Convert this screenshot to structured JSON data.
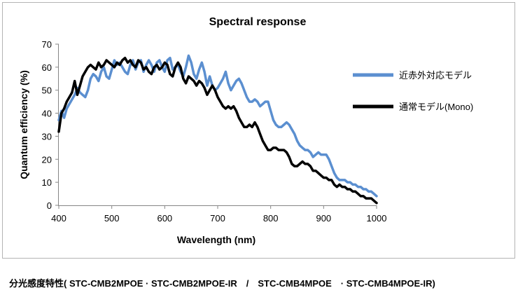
{
  "chart_data": {
    "type": "line",
    "title": "Spectral response",
    "xlabel": "Wavelength (nm)",
    "ylabel": "Quantum efficiency (%)",
    "xlim": [
      400,
      1000
    ],
    "ylim": [
      0,
      70
    ],
    "xticks": [
      400,
      500,
      600,
      700,
      800,
      900,
      1000
    ],
    "yticks": [
      0,
      10,
      20,
      30,
      40,
      50,
      60,
      70
    ],
    "grid": false,
    "legend_position": "right",
    "series": [
      {
        "name": "近赤外対応モデル",
        "color": "#5b8fd0",
        "x": [
          400,
          405,
          410,
          415,
          420,
          425,
          430,
          435,
          440,
          445,
          450,
          455,
          460,
          465,
          470,
          475,
          480,
          485,
          490,
          495,
          500,
          505,
          510,
          515,
          520,
          525,
          530,
          535,
          540,
          545,
          550,
          555,
          560,
          565,
          570,
          575,
          580,
          585,
          590,
          595,
          600,
          605,
          610,
          615,
          620,
          625,
          630,
          635,
          640,
          645,
          650,
          655,
          660,
          665,
          670,
          675,
          680,
          685,
          690,
          695,
          700,
          705,
          710,
          715,
          720,
          725,
          730,
          735,
          740,
          745,
          750,
          755,
          760,
          765,
          770,
          775,
          780,
          785,
          790,
          795,
          800,
          805,
          810,
          815,
          820,
          825,
          830,
          835,
          840,
          845,
          850,
          855,
          860,
          865,
          870,
          875,
          880,
          885,
          890,
          895,
          900,
          905,
          910,
          915,
          920,
          925,
          930,
          935,
          940,
          945,
          950,
          955,
          960,
          965,
          970,
          975,
          980,
          985,
          990,
          995,
          1000
        ],
        "y": [
          37,
          41,
          38,
          42,
          44,
          46,
          48,
          51,
          49,
          48,
          47,
          50,
          55,
          57,
          56,
          54,
          58,
          60,
          56,
          55,
          59,
          63,
          61,
          62,
          60,
          58,
          57,
          61,
          63,
          59,
          62,
          63,
          58,
          61,
          63,
          61,
          58,
          62,
          63,
          60,
          58,
          63,
          64,
          59,
          60,
          61,
          58,
          56,
          60,
          65,
          62,
          57,
          55,
          59,
          62,
          58,
          52,
          56,
          52,
          50,
          51,
          53,
          55,
          58,
          53,
          50,
          52,
          54,
          55,
          53,
          50,
          47,
          45,
          45,
          46,
          45,
          43,
          44,
          45,
          45,
          41,
          37,
          35,
          34,
          34,
          35,
          36,
          35,
          33,
          31,
          28,
          26,
          25,
          24,
          24,
          23,
          21,
          22,
          23,
          22,
          22,
          22,
          20,
          17,
          14,
          12,
          11,
          11,
          11,
          10,
          10,
          9,
          9,
          8,
          8,
          7,
          7,
          6,
          6,
          5,
          4
        ]
      },
      {
        "name": "通常モデル(Mono)",
        "color": "#000000",
        "x": [
          400,
          405,
          410,
          415,
          420,
          425,
          430,
          435,
          440,
          445,
          450,
          455,
          460,
          465,
          470,
          475,
          480,
          485,
          490,
          495,
          500,
          505,
          510,
          515,
          520,
          525,
          530,
          535,
          540,
          545,
          550,
          555,
          560,
          565,
          570,
          575,
          580,
          585,
          590,
          595,
          600,
          605,
          610,
          615,
          620,
          625,
          630,
          635,
          640,
          645,
          650,
          655,
          660,
          665,
          670,
          675,
          680,
          685,
          690,
          695,
          700,
          705,
          710,
          715,
          720,
          725,
          730,
          735,
          740,
          745,
          750,
          755,
          760,
          765,
          770,
          775,
          780,
          785,
          790,
          795,
          800,
          805,
          810,
          815,
          820,
          825,
          830,
          835,
          840,
          845,
          850,
          855,
          860,
          865,
          870,
          875,
          880,
          885,
          890,
          895,
          900,
          905,
          910,
          915,
          920,
          925,
          930,
          935,
          940,
          945,
          950,
          955,
          960,
          965,
          970,
          975,
          980,
          985,
          990,
          995,
          1000
        ],
        "y": [
          32,
          40,
          42,
          45,
          47,
          49,
          54,
          48,
          52,
          56,
          58,
          60,
          61,
          60,
          59,
          62,
          60,
          61,
          63,
          62,
          61,
          60,
          62,
          61,
          63,
          64,
          62,
          63,
          61,
          60,
          63,
          62,
          59,
          60,
          58,
          57,
          60,
          61,
          59,
          60,
          62,
          61,
          57,
          56,
          60,
          62,
          60,
          55,
          53,
          56,
          55,
          54,
          52,
          54,
          53,
          51,
          48,
          50,
          52,
          50,
          47,
          45,
          43,
          42,
          43,
          42,
          43,
          41,
          38,
          36,
          34,
          34,
          35,
          34,
          36,
          34,
          31,
          28,
          26,
          24,
          24,
          25,
          25,
          24,
          24,
          24,
          23,
          21,
          18,
          17,
          17,
          18,
          19,
          18,
          18,
          17,
          15,
          15,
          14,
          13,
          12,
          12,
          11,
          11,
          9,
          8,
          9,
          8,
          8,
          7,
          7,
          6,
          6,
          5,
          4,
          4,
          3,
          3,
          3,
          2,
          1
        ]
      }
    ]
  },
  "caption": "分光感度特性( STC-CMB2MPOE · STC-CMB2MPOE-IR　/　STC-CMB4MPOE　· STC-CMB4MPOE-IR)"
}
